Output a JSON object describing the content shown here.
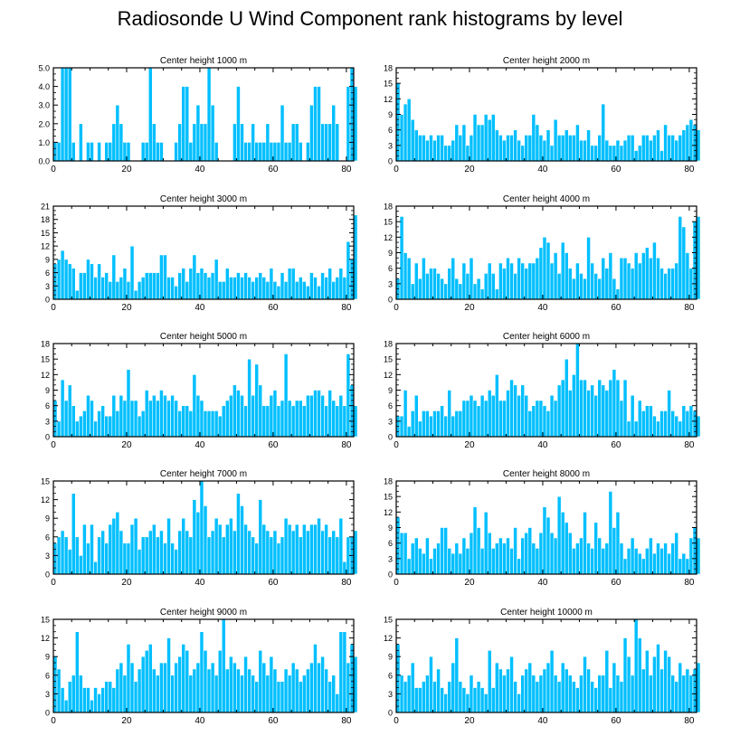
{
  "title": "Radiosonde U Wind Component rank histograms by level",
  "colors": {
    "bar_fill": "#00BFFF",
    "bar_stroke": "#ffffff",
    "axis": "#000000",
    "background": "#ffffff"
  },
  "chart_data": [
    {
      "type": "bar",
      "title": "Center height 1000 m",
      "x_start": 0,
      "xlim": [
        0,
        82
      ],
      "ylim": [
        0,
        5
      ],
      "xticks": [
        0,
        20,
        40,
        60,
        80
      ],
      "yticks": [
        0,
        1,
        2,
        3,
        4,
        5
      ],
      "ytick_labels": [
        "0.0",
        "1.0",
        "2.0",
        "3.0",
        "4.0",
        "5.0"
      ],
      "values": [
        1,
        1,
        5,
        5,
        5,
        1,
        0,
        2,
        0,
        1,
        1,
        0,
        1,
        0,
        1,
        1,
        2,
        3,
        2,
        1,
        1,
        0,
        0,
        0,
        1,
        1,
        5,
        2,
        1,
        1,
        0,
        0,
        0,
        1,
        2,
        4,
        4,
        1,
        2,
        3,
        2,
        2,
        5,
        3,
        1,
        0,
        0,
        0,
        0,
        2,
        4,
        2,
        1,
        1,
        2,
        1,
        1,
        1,
        2,
        1,
        1,
        1,
        3,
        1,
        1,
        2,
        2,
        1,
        0,
        1,
        3,
        4,
        4,
        2,
        2,
        2,
        3,
        2,
        0,
        0,
        4,
        5,
        4
      ]
    },
    {
      "type": "bar",
      "title": "Center height 2000 m",
      "x_start": 0,
      "xlim": [
        0,
        82
      ],
      "ylim": [
        0,
        18
      ],
      "xticks": [
        0,
        20,
        40,
        60,
        80
      ],
      "yticks": [
        0,
        3,
        6,
        9,
        12,
        15,
        18
      ],
      "ytick_labels": [
        "0",
        "3",
        "6",
        "9",
        "12",
        "15",
        "18"
      ],
      "values": [
        15,
        9,
        11,
        12,
        8,
        6,
        5,
        5,
        4,
        5,
        4,
        5,
        5,
        3,
        3,
        4,
        7,
        5,
        7,
        3,
        5,
        9,
        7,
        7,
        9,
        8,
        9,
        6,
        5,
        4,
        5,
        5,
        6,
        4,
        3,
        5,
        5,
        9,
        7,
        5,
        4,
        6,
        3,
        8,
        5,
        5,
        6,
        5,
        5,
        7,
        4,
        4,
        6,
        3,
        3,
        5,
        11,
        4,
        3,
        3,
        4,
        3,
        4,
        5,
        5,
        2,
        3,
        5,
        5,
        4,
        5,
        6,
        2,
        7,
        5,
        5,
        4,
        5,
        6,
        7,
        8,
        7,
        6
      ]
    },
    {
      "type": "bar",
      "title": "Center height 3000 m",
      "x_start": 0,
      "xlim": [
        0,
        82
      ],
      "ylim": [
        0,
        21
      ],
      "xticks": [
        0,
        20,
        40,
        60,
        80
      ],
      "yticks": [
        0,
        3,
        6,
        9,
        12,
        15,
        18,
        21
      ],
      "ytick_labels": [
        "0",
        "3",
        "6",
        "9",
        "12",
        "15",
        "18",
        "21"
      ],
      "values": [
        8,
        9,
        11,
        9,
        8,
        7,
        2,
        6,
        6,
        9,
        8,
        5,
        8,
        5,
        6,
        4,
        10,
        4,
        5,
        7,
        4,
        12,
        2,
        4,
        5,
        6,
        6,
        6,
        6,
        10,
        10,
        5,
        5,
        3,
        6,
        7,
        4,
        7,
        10,
        6,
        7,
        6,
        5,
        6,
        9,
        4,
        4,
        7,
        5,
        5,
        6,
        5,
        6,
        5,
        4,
        5,
        6,
        5,
        4,
        7,
        4,
        3,
        6,
        4,
        7,
        7,
        4,
        5,
        4,
        3,
        6,
        5,
        3,
        6,
        5,
        7,
        4,
        5,
        7,
        5,
        13,
        9,
        19
      ]
    },
    {
      "type": "bar",
      "title": "Center height 4000 m",
      "x_start": 0,
      "xlim": [
        0,
        82
      ],
      "ylim": [
        0,
        18
      ],
      "xticks": [
        0,
        20,
        40,
        60,
        80
      ],
      "yticks": [
        0,
        3,
        6,
        9,
        12,
        15,
        18
      ],
      "ytick_labels": [
        "0",
        "3",
        "6",
        "9",
        "12",
        "15",
        "18"
      ],
      "values": [
        4,
        16,
        9,
        8,
        3,
        7,
        4,
        8,
        5,
        6,
        6,
        5,
        4,
        3,
        6,
        8,
        4,
        3,
        7,
        5,
        8,
        3,
        4,
        2,
        5,
        7,
        5,
        2,
        7,
        6,
        8,
        7,
        5,
        8,
        7,
        6,
        7,
        7,
        8,
        10,
        12,
        11,
        7,
        9,
        5,
        11,
        9,
        6,
        4,
        7,
        5,
        4,
        12,
        7,
        5,
        4,
        8,
        6,
        9,
        4,
        2,
        8,
        8,
        7,
        6,
        9,
        7,
        9,
        10,
        8,
        11,
        8,
        6,
        5,
        6,
        6,
        7,
        16,
        14,
        9,
        6,
        15,
        16
      ]
    },
    {
      "type": "bar",
      "title": "Center height 5000 m",
      "x_start": 0,
      "xlim": [
        0,
        82
      ],
      "ylim": [
        0,
        18
      ],
      "xticks": [
        0,
        20,
        40,
        60,
        80
      ],
      "yticks": [
        0,
        3,
        6,
        9,
        12,
        15,
        18
      ],
      "ytick_labels": [
        "0",
        "3",
        "6",
        "9",
        "12",
        "15",
        "18"
      ],
      "values": [
        7,
        3,
        11,
        7,
        10,
        6,
        3,
        4,
        5,
        8,
        7,
        3,
        5,
        6,
        4,
        4,
        8,
        5,
        8,
        7,
        13,
        7,
        7,
        4,
        5,
        9,
        7,
        8,
        7,
        9,
        8,
        7,
        8,
        7,
        5,
        6,
        6,
        5,
        12,
        8,
        7,
        5,
        5,
        5,
        5,
        4,
        6,
        7,
        8,
        10,
        9,
        8,
        6,
        15,
        8,
        14,
        10,
        6,
        6,
        8,
        9,
        6,
        7,
        16,
        7,
        6,
        7,
        7,
        6,
        8,
        8,
        9,
        9,
        8,
        6,
        9,
        7,
        6,
        8,
        6,
        16,
        10,
        6
      ]
    },
    {
      "type": "bar",
      "title": "Center height 6000 m",
      "x_start": 0,
      "xlim": [
        0,
        82
      ],
      "ylim": [
        0,
        18
      ],
      "xticks": [
        0,
        20,
        40,
        60,
        80
      ],
      "yticks": [
        0,
        3,
        6,
        9,
        12,
        15,
        18
      ],
      "ytick_labels": [
        "0",
        "3",
        "6",
        "9",
        "12",
        "15",
        "18"
      ],
      "values": [
        4,
        4,
        9,
        2,
        5,
        8,
        3,
        5,
        5,
        4,
        5,
        5,
        6,
        4,
        9,
        4,
        5,
        5,
        7,
        7,
        8,
        7,
        6,
        8,
        7,
        9,
        8,
        12,
        7,
        7,
        9,
        11,
        10,
        8,
        10,
        8,
        5,
        6,
        7,
        7,
        6,
        5,
        8,
        7,
        10,
        11,
        15,
        9,
        12,
        18,
        11,
        11,
        9,
        10,
        8,
        11,
        10,
        9,
        11,
        13,
        11,
        7,
        11,
        3,
        8,
        3,
        7,
        5,
        6,
        6,
        4,
        3,
        5,
        5,
        9,
        5,
        4,
        3,
        6,
        5,
        6,
        5,
        4
      ]
    },
    {
      "type": "bar",
      "title": "Center height 7000 m",
      "x_start": 0,
      "xlim": [
        0,
        82
      ],
      "ylim": [
        0,
        15
      ],
      "xticks": [
        0,
        20,
        40,
        60,
        80
      ],
      "yticks": [
        0,
        3,
        6,
        9,
        12,
        15
      ],
      "ytick_labels": [
        "0",
        "3",
        "6",
        "9",
        "12",
        "15"
      ],
      "values": [
        5,
        6,
        7,
        6,
        4,
        13,
        6,
        3,
        8,
        5,
        8,
        2,
        6,
        7,
        5,
        8,
        9,
        10,
        7,
        5,
        5,
        8,
        9,
        4,
        6,
        6,
        7,
        8,
        6,
        7,
        5,
        9,
        5,
        4,
        7,
        9,
        7,
        6,
        12,
        10,
        15,
        11,
        6,
        7,
        9,
        8,
        6,
        8,
        9,
        7,
        13,
        11,
        8,
        7,
        6,
        5,
        12,
        8,
        7,
        6,
        7,
        5,
        6,
        9,
        8,
        7,
        8,
        6,
        8,
        7,
        8,
        8,
        9,
        7,
        8,
        6,
        7,
        6,
        9,
        2,
        6,
        6,
        7
      ]
    },
    {
      "type": "bar",
      "title": "Center height 8000 m",
      "x_start": 0,
      "xlim": [
        0,
        82
      ],
      "ylim": [
        0,
        18
      ],
      "xticks": [
        0,
        20,
        40,
        60,
        80
      ],
      "yticks": [
        0,
        3,
        6,
        9,
        12,
        15,
        18
      ],
      "ytick_labels": [
        "0",
        "3",
        "6",
        "9",
        "12",
        "15",
        "18"
      ],
      "values": [
        11,
        8,
        8,
        3,
        6,
        7,
        5,
        4,
        7,
        3,
        5,
        6,
        9,
        9,
        5,
        4,
        6,
        4,
        7,
        5,
        8,
        13,
        9,
        5,
        12,
        8,
        5,
        6,
        7,
        6,
        7,
        5,
        9,
        3,
        7,
        8,
        9,
        6,
        5,
        8,
        13,
        11,
        8,
        7,
        15,
        12,
        10,
        8,
        5,
        6,
        7,
        12,
        6,
        5,
        10,
        7,
        5,
        6,
        16,
        9,
        12,
        6,
        3,
        5,
        7,
        5,
        4,
        3,
        5,
        7,
        4,
        6,
        5,
        6,
        4,
        6,
        8,
        3,
        4,
        3,
        7,
        9,
        7
      ]
    },
    {
      "type": "bar",
      "title": "Center height 9000 m",
      "x_start": 0,
      "xlim": [
        0,
        82
      ],
      "ylim": [
        0,
        15
      ],
      "xticks": [
        0,
        20,
        40,
        60,
        80
      ],
      "yticks": [
        0,
        3,
        6,
        9,
        12,
        15
      ],
      "ytick_labels": [
        "0",
        "3",
        "6",
        "9",
        "12",
        "15"
      ],
      "values": [
        9,
        7,
        4,
        2,
        5,
        6,
        13,
        6,
        4,
        4,
        2,
        4,
        3,
        4,
        5,
        5,
        4,
        7,
        8,
        6,
        11,
        8,
        5,
        7,
        9,
        10,
        11,
        7,
        6,
        8,
        8,
        12,
        6,
        8,
        9,
        11,
        10,
        6,
        7,
        8,
        13,
        10,
        7,
        8,
        6,
        10,
        15,
        7,
        9,
        8,
        7,
        6,
        9,
        7,
        6,
        5,
        10,
        8,
        6,
        9,
        7,
        5,
        5,
        7,
        6,
        8,
        7,
        5,
        6,
        7,
        8,
        11,
        8,
        9,
        7,
        5,
        6,
        3,
        13,
        13,
        8,
        11,
        9
      ]
    },
    {
      "type": "bar",
      "title": "Center height 10000 m",
      "x_start": 0,
      "xlim": [
        0,
        82
      ],
      "ylim": [
        0,
        15
      ],
      "xticks": [
        0,
        20,
        40,
        60,
        80
      ],
      "yticks": [
        0,
        3,
        6,
        9,
        12,
        15
      ],
      "ytick_labels": [
        "0",
        "3",
        "6",
        "9",
        "12",
        "15"
      ],
      "values": [
        11,
        6,
        5,
        6,
        8,
        4,
        4,
        5,
        6,
        9,
        5,
        7,
        4,
        3,
        5,
        8,
        12,
        5,
        4,
        3,
        6,
        4,
        5,
        4,
        3,
        10,
        4,
        8,
        7,
        6,
        7,
        9,
        5,
        3,
        6,
        7,
        8,
        6,
        5,
        6,
        7,
        8,
        10,
        6,
        5,
        8,
        7,
        6,
        5,
        4,
        6,
        9,
        7,
        5,
        4,
        6,
        6,
        10,
        4,
        8,
        6,
        5,
        12,
        9,
        6,
        15,
        12,
        7,
        10,
        6,
        9,
        11,
        7,
        10,
        9,
        6,
        5,
        8,
        6,
        7,
        6,
        7,
        8
      ]
    }
  ]
}
